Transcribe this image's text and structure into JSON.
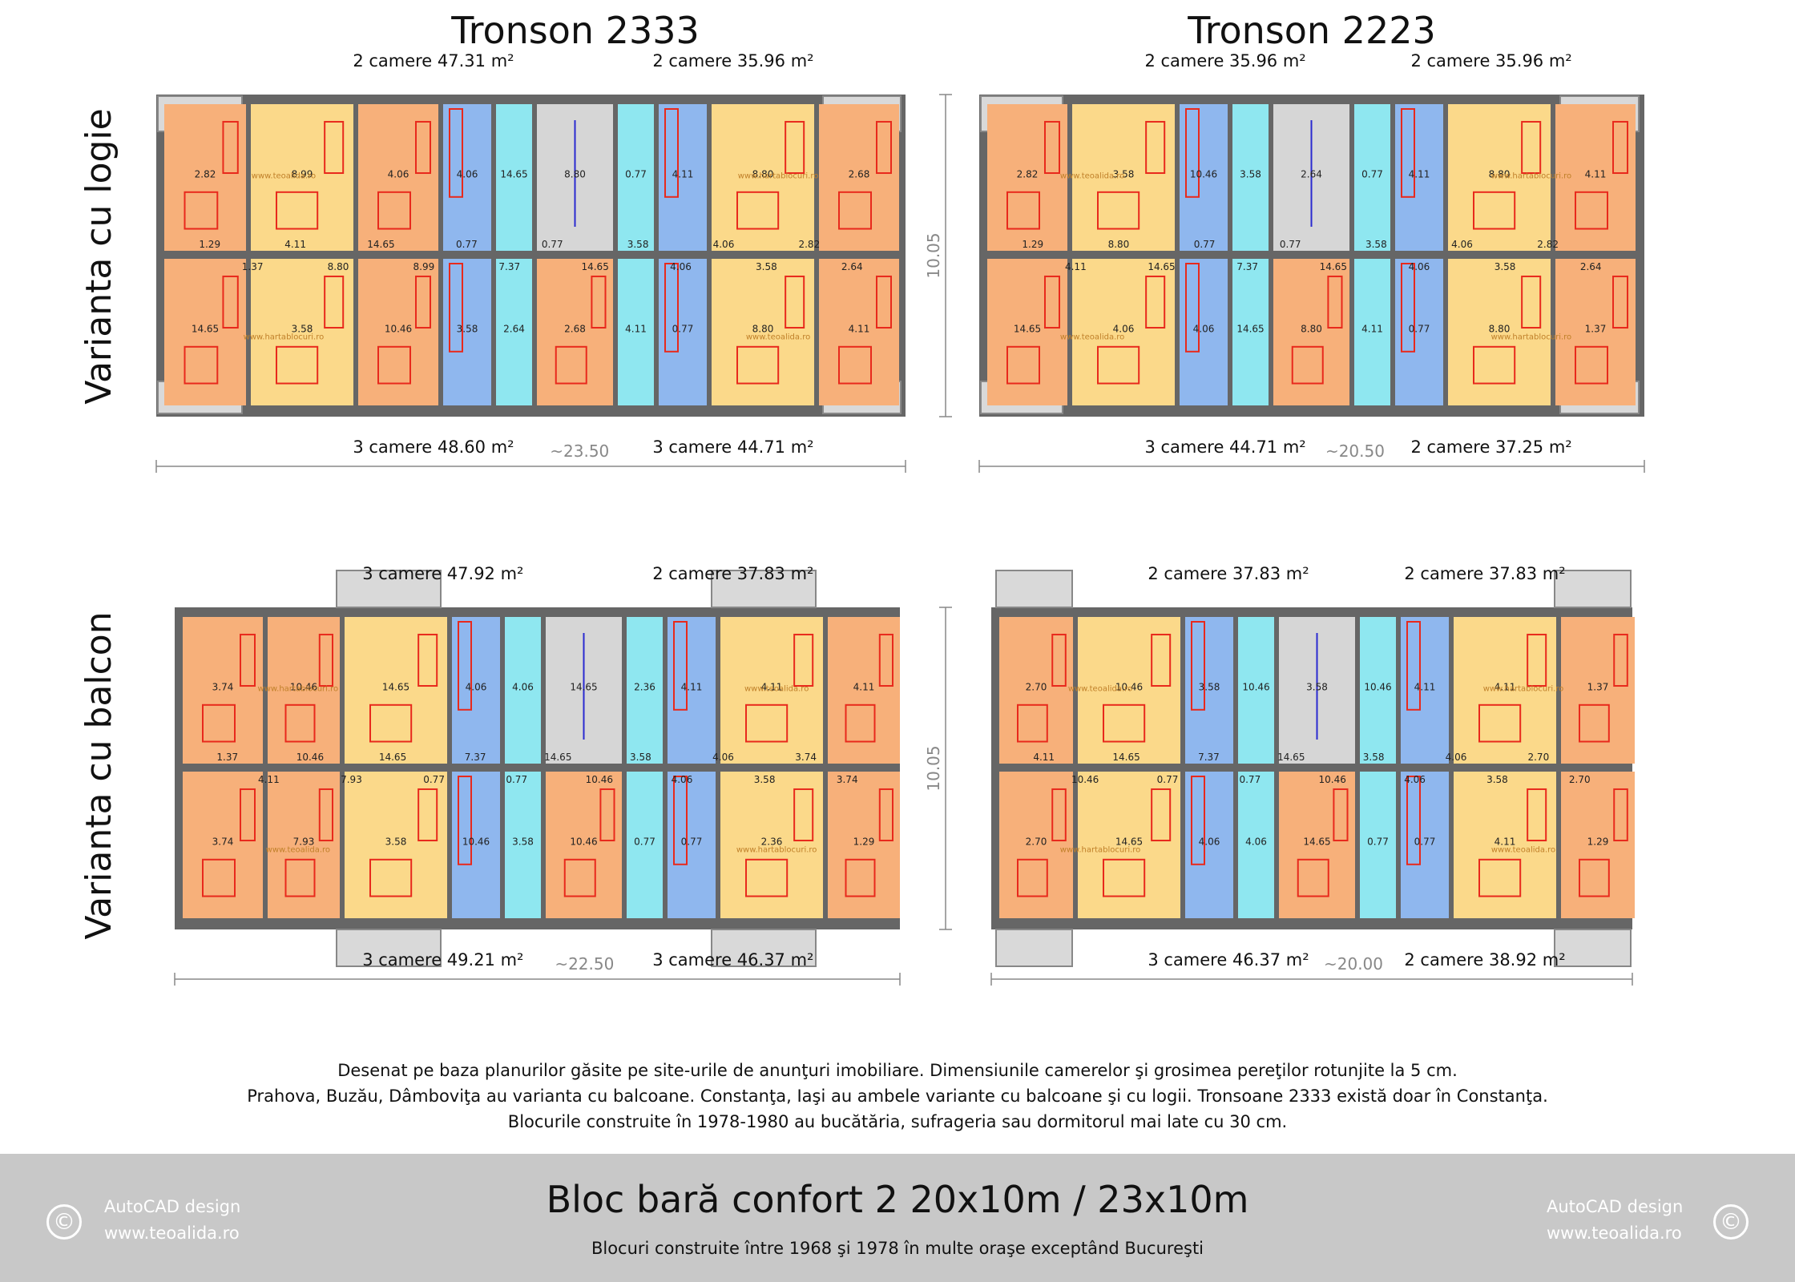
{
  "headings": {
    "tronson_a": "Tronson 2333",
    "tronson_b": "Tronson 2223"
  },
  "rows": {
    "logie": "Varianta cu logie",
    "balcon": "Varianta cu balcon"
  },
  "colors": {
    "bedroom": "#f7b07a",
    "living": "#fbd98a",
    "hall": "#f7f48a",
    "bath": "#8fb7ee",
    "kitchen": "#8fe7f0",
    "stair": "#d6d6d6",
    "balcony": "#d9d9d9",
    "wall": "#666666",
    "furniture": "#e8291c",
    "door": "#2a2ad0"
  },
  "blocks": [
    {
      "id": "logie-2333",
      "top_left_label": "2 camere 47.31 m²",
      "top_right_label": "2 camere 35.96 m²",
      "bottom_left_label": "3 camere 48.60 m²",
      "bottom_right_label": "3 camere 44.71 m²",
      "dimension": "~23.50",
      "height": "10.05",
      "rooms": [
        "2.82",
        "14.65",
        "8.99",
        "3.58",
        "4.06",
        "10.46",
        "4.06",
        "3.58",
        "14.65",
        "2.64",
        "8.80",
        "2.68",
        "0.77",
        "4.11",
        "4.11",
        "0.77",
        "8.80",
        "8.80",
        "2.68",
        "4.11",
        "1.29",
        "1.37",
        "4.11",
        "8.80",
        "14.65",
        "8.99",
        "0.77",
        "7.37",
        "0.77",
        "14.65",
        "3.58",
        "4.06",
        "4.06",
        "3.58",
        "2.82",
        "2.64"
      ],
      "watermarks": [
        "www.teoalida.ro",
        "www.hartablocuri.ro",
        "www.hartablocuri.ro",
        "www.teoalida.ro"
      ]
    },
    {
      "id": "logie-2223",
      "top_left_label": "2 camere 35.96 m²",
      "top_right_label": "2 camere 35.96 m²",
      "bottom_left_label": "3 camere 44.71 m²",
      "bottom_right_label": "2 camere 37.25 m²",
      "dimension": "~20.50",
      "rooms": [
        "2.82",
        "14.65",
        "3.58",
        "4.06",
        "10.46",
        "4.06",
        "3.58",
        "14.65",
        "2.64",
        "8.80",
        "0.77",
        "4.11",
        "4.11",
        "0.77",
        "8.80",
        "8.80",
        "4.11",
        "1.37",
        "1.29",
        "4.11",
        "8.80",
        "14.65",
        "0.77",
        "7.37",
        "0.77",
        "14.65",
        "3.58",
        "4.06",
        "4.06",
        "3.58",
        "2.82",
        "2.64"
      ],
      "watermarks": [
        "www.teoalida.ro",
        "www.hartablocuri.ro",
        "www.teoalida.ro",
        "www.hartablocuri.ro"
      ]
    },
    {
      "id": "balcon-2333",
      "top_left_label": "3 camere 47.92 m²",
      "top_right_label": "2 camere 37.83 m²",
      "bottom_left_label": "3 camere 49.21 m²",
      "bottom_right_label": "3 camere 46.37 m²",
      "dimension": "~22.50",
      "height": "10.05",
      "rooms": [
        "3.74",
        "3.74",
        "10.46",
        "7.93",
        "14.65",
        "3.58",
        "4.06",
        "10.46",
        "4.06",
        "3.58",
        "14.65",
        "10.46",
        "2.36",
        "0.77",
        "4.11",
        "0.77",
        "4.11",
        "2.36",
        "4.11",
        "1.29",
        "1.37",
        "4.11",
        "10.46",
        "7.93",
        "14.65",
        "0.77",
        "7.37",
        "0.77",
        "14.65",
        "10.46",
        "3.58",
        "4.06",
        "4.06",
        "3.58",
        "3.74",
        "3.74"
      ],
      "watermarks": [
        "www.hartablocuri.ro",
        "www.teoalida.ro",
        "www.teoalida.ro",
        "www.hartablocuri.ro"
      ]
    },
    {
      "id": "balcon-2223",
      "top_left_label": "2 camere 37.83 m²",
      "top_right_label": "2 camere 37.83 m²",
      "bottom_left_label": "3 camere 46.37 m²",
      "bottom_right_label": "2 camere 38.92 m²",
      "dimension": "~20.00",
      "rooms": [
        "2.70",
        "2.70",
        "10.46",
        "14.65",
        "3.58",
        "4.06",
        "10.46",
        "4.06",
        "3.58",
        "14.65",
        "10.46",
        "0.77",
        "4.11",
        "0.77",
        "4.11",
        "4.11",
        "1.37",
        "1.29",
        "4.11",
        "10.46",
        "14.65",
        "0.77",
        "7.37",
        "0.77",
        "14.65",
        "10.46",
        "3.58",
        "4.06",
        "4.06",
        "3.58",
        "2.70",
        "2.70"
      ],
      "watermarks": [
        "www.teoalida.ro",
        "www.hartablocuri.ro",
        "www.hartablocuri.ro",
        "www.teoalida.ro"
      ]
    }
  ],
  "notes": [
    "Desenat pe baza planurilor găsite pe site-urile de anunţuri imobiliare. Dimensiunile camerelor şi grosimea pereţilor rotunjite la 5 cm.",
    "Prahova, Buzău, Dâmboviţa au varianta cu balcoane. Constanţa, Iaşi au ambele variante cu balcoane şi cu logii. Tronsoane 2333 există doar în Constanţa.",
    "Blocurile construite în 1978-1980 au bucătăria, sufrageria sau dormitorul mai late cu 30 cm."
  ],
  "footer": {
    "title": "Bloc bară confort 2 20x10m / 23x10m",
    "subtitle": "Blocuri construite între 1968 şi 1978 în multe oraşe exceptând Bucureşti",
    "credit_left": [
      "AutoCAD design",
      "www.teoalida.ro"
    ],
    "credit_right": [
      "AutoCAD design",
      "www.teoalida.ro"
    ],
    "copyright": "©"
  }
}
